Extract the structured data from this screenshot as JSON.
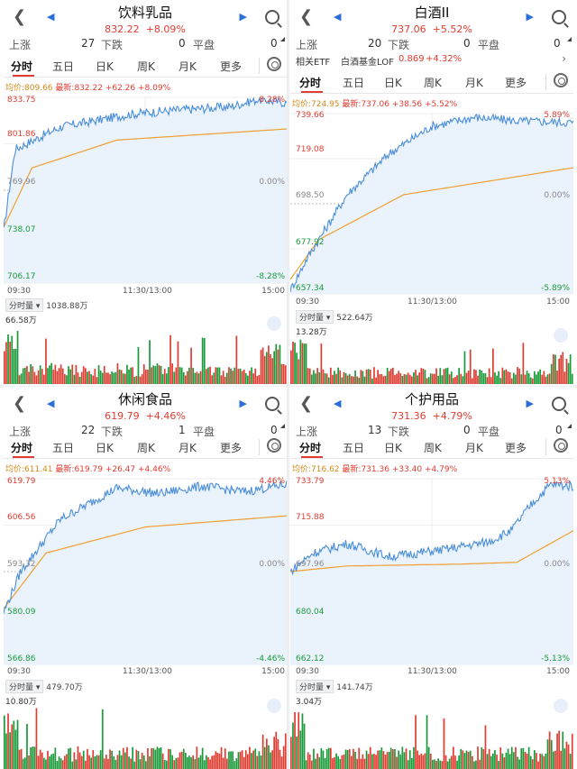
{
  "panels": [
    {
      "title": "饮料乳品",
      "price": "832.22",
      "change_pct": "+8.09%",
      "up_label": "上涨",
      "up_count": "27",
      "down_label": "下跌",
      "down_count": "0",
      "flat_label": "平盘",
      "flat_count": "0",
      "tabs": [
        "分时",
        "五日",
        "日K",
        "周K",
        "月K",
        "更多"
      ],
      "avg_label": "均价:809.66",
      "last_label": "最新:832.22",
      "chg": "+62.26",
      "chg_pct": "+8.09%",
      "y_left": [
        "833.75",
        "801.86",
        "769.96",
        "738.07",
        "706.17"
      ],
      "y_right": [
        "8.28%",
        "0.00%",
        "-8.28%"
      ],
      "t_start": "09:30",
      "t_mid": "11:30/13:00",
      "t_end": "15:00",
      "vol_btn": "分时量",
      "vol_total": "1038.88万",
      "vol_max": "66.58万"
    },
    {
      "title": "白酒II",
      "price": "737.06",
      "change_pct": "+5.52%",
      "up_label": "上涨",
      "up_count": "20",
      "down_label": "下跌",
      "down_count": "0",
      "flat_label": "平盘",
      "flat_count": "0",
      "etf_label": "相关ETF",
      "etf_name": "白酒基金LOF",
      "etf_price": "0.869",
      "etf_pct": "+4.32%",
      "tabs": [
        "分时",
        "五日",
        "日K",
        "周K",
        "月K",
        "更多"
      ],
      "avg_label": "均价:724.95",
      "last_label": "最新:737.06",
      "chg": "+38.56",
      "chg_pct": "+5.52%",
      "y_left": [
        "739.66",
        "719.08",
        "698.50",
        "677.92",
        "657.34"
      ],
      "y_right": [
        "5.89%",
        "0.00%",
        "-5.89%"
      ],
      "t_start": "09:30",
      "t_mid": "11:30/13:00",
      "t_end": "15:00",
      "vol_btn": "分时量",
      "vol_total": "522.64万",
      "vol_max": "13.28万"
    },
    {
      "title": "休闲食品",
      "price": "619.79",
      "change_pct": "+4.46%",
      "up_label": "上涨",
      "up_count": "22",
      "down_label": "下跌",
      "down_count": "1",
      "flat_label": "平盘",
      "flat_count": "0",
      "tabs": [
        "分时",
        "五日",
        "日K",
        "周K",
        "月K",
        "更多"
      ],
      "avg_label": "均价:611.41",
      "last_label": "最新:619.79",
      "chg": "+26.47",
      "chg_pct": "+4.46%",
      "y_left": [
        "619.79",
        "606.56",
        "593.32",
        "580.09",
        "566.86"
      ],
      "y_right": [
        "4.46%",
        "0.00%",
        "-4.46%"
      ],
      "t_start": "09:30",
      "t_mid": "11:30/13:00",
      "t_end": "15:00",
      "vol_btn": "分时量",
      "vol_total": "479.70万",
      "vol_max": "10.80万"
    },
    {
      "title": "个护用品",
      "price": "731.36",
      "change_pct": "+4.79%",
      "up_label": "上涨",
      "up_count": "13",
      "down_label": "下跌",
      "down_count": "0",
      "flat_label": "平盘",
      "flat_count": "0",
      "tabs": [
        "分时",
        "五日",
        "日K",
        "周K",
        "月K",
        "更多"
      ],
      "avg_label": "均价:716.62",
      "last_label": "最新:731.36",
      "chg": "+33.40",
      "chg_pct": "+4.79%",
      "y_left": [
        "733.79",
        "715.88",
        "697.96",
        "680.04",
        "662.12"
      ],
      "y_right": [
        "5.13%",
        "0.00%",
        "-5.13%"
      ],
      "t_start": "09:30",
      "t_mid": "11:30/13:00",
      "t_end": "15:00",
      "vol_btn": "分时量",
      "vol_total": "141.74万",
      "vol_max": "3.04万"
    }
  ],
  "colors": {
    "up": "#e03c31",
    "down": "#1a9b3a",
    "price_line": "#4a8ed8",
    "avg_line": "#f0a030",
    "fill": "#eaf2fc"
  }
}
